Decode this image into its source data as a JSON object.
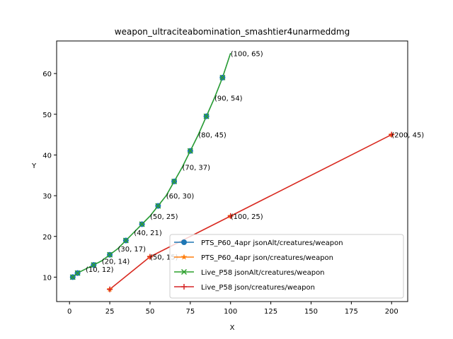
{
  "chart_data": {
    "type": "line",
    "title": "weapon_ultraciteabomination_smashtier4unarmeddmg",
    "xlabel": "X",
    "ylabel": "Y",
    "xlim": [
      -8,
      210
    ],
    "ylim": [
      4,
      68
    ],
    "xticks": [
      0,
      25,
      50,
      75,
      100,
      125,
      150,
      175,
      200
    ],
    "yticks": [
      10,
      20,
      30,
      40,
      50,
      60
    ],
    "grid": false,
    "legend_position": "lower-right",
    "series": [
      {
        "name": "PTS_P60_4apr jsonAlt/creatures/weapon",
        "color": "#1f77b4",
        "marker": "circle",
        "x": [
          2,
          5,
          10,
          15,
          20,
          25,
          30,
          35,
          40,
          45,
          50,
          55,
          60,
          65,
          70,
          75,
          80,
          85,
          90,
          95,
          100
        ],
        "y": [
          10,
          11,
          12,
          13,
          14,
          15.5,
          17,
          19,
          21,
          23,
          25,
          27.5,
          30,
          33.5,
          37,
          41,
          45,
          49.5,
          54,
          59,
          65
        ]
      },
      {
        "name": "PTS_P60_4apr json/creatures/weapon",
        "color": "#ff7f0e",
        "marker": "star",
        "x": [
          25,
          50,
          100,
          200
        ],
        "y": [
          7,
          15,
          25,
          45
        ]
      },
      {
        "name": "Live_P58 jsonAlt/creatures/weapon",
        "color": "#2ca02c",
        "marker": "x",
        "x": [
          2,
          5,
          10,
          15,
          20,
          25,
          30,
          35,
          40,
          45,
          50,
          55,
          60,
          65,
          70,
          75,
          80,
          85,
          90,
          95,
          100
        ],
        "y": [
          10,
          11,
          12,
          13,
          14,
          15.5,
          17,
          19,
          21,
          23,
          25,
          27.5,
          30,
          33.5,
          37,
          41,
          45,
          49.5,
          54,
          59,
          65
        ]
      },
      {
        "name": "Live_P58 json/creatures/weapon",
        "color": "#d62728",
        "marker": "plus",
        "x": [
          25,
          50,
          100,
          200
        ],
        "y": [
          7,
          15,
          25,
          45
        ]
      }
    ],
    "annotations": [
      {
        "x": 10,
        "y": 12,
        "text": "(10, 12)"
      },
      {
        "x": 20,
        "y": 14,
        "text": "(20, 14)"
      },
      {
        "x": 30,
        "y": 17,
        "text": "(30, 17)"
      },
      {
        "x": 40,
        "y": 21,
        "text": "(40, 21)"
      },
      {
        "x": 50,
        "y": 25,
        "text": "(50, 25)"
      },
      {
        "x": 60,
        "y": 30,
        "text": "(60, 30)"
      },
      {
        "x": 70,
        "y": 37,
        "text": "(70, 37)"
      },
      {
        "x": 80,
        "y": 45,
        "text": "(80, 45)"
      },
      {
        "x": 90,
        "y": 54,
        "text": "(90, 54)"
      },
      {
        "x": 100,
        "y": 65,
        "text": "(100, 65)"
      },
      {
        "x": 50,
        "y": 15,
        "text": "(50, 15)"
      },
      {
        "x": 100,
        "y": 25,
        "text": "(100, 25)"
      },
      {
        "x": 200,
        "y": 45,
        "text": "(200, 45)"
      }
    ]
  }
}
